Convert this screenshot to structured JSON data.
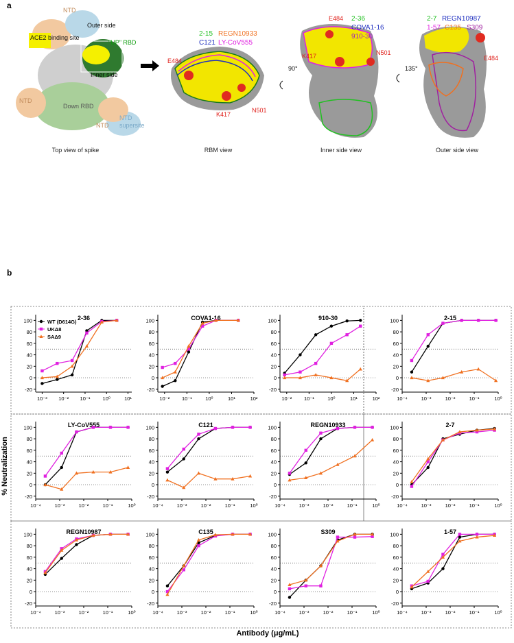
{
  "panel_a": {
    "label": "a",
    "spike_labels": [
      "NTD",
      "Outer side",
      "ACE2 binding site",
      "\"UP\" RBD",
      "Inner side",
      "NTD",
      "Down RBD",
      "NTD",
      "NTD",
      "supersite"
    ],
    "captions": [
      "Top view of spike",
      "RBM view",
      "Inner side view",
      "Outer side view"
    ],
    "rbm_view": {
      "antibodies": [
        "2-15",
        "REGN10933",
        "C121",
        "LY-CoV555"
      ],
      "mutations": [
        "E484",
        "K417",
        "N501"
      ]
    },
    "inner_view": {
      "rotation": "90°",
      "antibodies": [
        "2-36",
        "COVA1-16",
        "910-30"
      ],
      "mutations": [
        "E484",
        "K417",
        "N501"
      ]
    },
    "outer_view": {
      "rotation": "135°",
      "antibodies": [
        "2-7",
        "REGN10987",
        "1-57",
        "C135",
        "S309"
      ],
      "mutations": [
        "E484"
      ]
    }
  },
  "panel_b": {
    "label": "b",
    "y_label": "% Neutralization",
    "x_label": "Antibody (μg/mL)",
    "ref_lines": [
      0,
      50
    ]
  },
  "chart_data": [
    {
      "type": "line",
      "title": "2-36",
      "xscale": "log",
      "xlim": [
        0.0005,
        15
      ],
      "ylim": [
        -25,
        110
      ],
      "xticks": [
        {
          "value": 0.001,
          "label": "10⁻³"
        },
        {
          "value": 0.01,
          "label": "10⁻²"
        },
        {
          "value": 0.1,
          "label": "10⁻¹"
        },
        {
          "value": 1,
          "label": "10⁰"
        },
        {
          "value": 10,
          "label": "10¹"
        }
      ],
      "yticks": [
        -20,
        0,
        20,
        40,
        60,
        80,
        100
      ],
      "legend": "upper left",
      "x": [
        0.001,
        0.005,
        0.025,
        0.12,
        0.6,
        3
      ],
      "series": [
        {
          "name": "WT (D614G)",
          "color": "#000000",
          "marker": "circle",
          "values": [
            -10,
            -3,
            5,
            82,
            100,
            100
          ]
        },
        {
          "name": "UKΔ8",
          "color": "#e020e0",
          "marker": "square",
          "values": [
            12,
            25,
            30,
            78,
            98,
            100
          ]
        },
        {
          "name": "SAΔ9",
          "color": "#f07020",
          "marker": "triangle",
          "values": [
            0,
            2,
            20,
            55,
            97,
            100
          ]
        }
      ]
    },
    {
      "type": "line",
      "title": "COVA1-16",
      "xscale": "log",
      "xlim": [
        0.005,
        100
      ],
      "ylim": [
        -25,
        110
      ],
      "xticks": [
        {
          "value": 0.01,
          "label": "10⁻²"
        },
        {
          "value": 0.1,
          "label": "10⁻¹"
        },
        {
          "value": 1,
          "label": "10⁰"
        },
        {
          "value": 10,
          "label": "10¹"
        },
        {
          "value": 100,
          "label": "10²"
        }
      ],
      "yticks": [
        -20,
        0,
        20,
        40,
        60,
        80,
        100
      ],
      "x": [
        0.008,
        0.03,
        0.12,
        0.5,
        2,
        20
      ],
      "series": [
        {
          "color": "#000000",
          "marker": "circle",
          "values": [
            -15,
            -5,
            45,
            97,
            100,
            100
          ]
        },
        {
          "color": "#e020e0",
          "marker": "square",
          "values": [
            18,
            25,
            50,
            90,
            100,
            100
          ]
        },
        {
          "color": "#f07020",
          "marker": "triangle",
          "values": [
            0,
            10,
            55,
            95,
            100,
            100
          ]
        }
      ]
    },
    {
      "type": "line",
      "title": "910-30",
      "xscale": "log",
      "xlim": [
        0.005,
        100
      ],
      "ylim": [
        -25,
        110
      ],
      "xticks": [
        {
          "value": 0.01,
          "label": "10⁻²"
        },
        {
          "value": 0.1,
          "label": "10⁻¹"
        },
        {
          "value": 1,
          "label": "10⁰"
        },
        {
          "value": 10,
          "label": "10¹"
        },
        {
          "value": 100,
          "label": "10²"
        }
      ],
      "yticks": [
        -20,
        0,
        20,
        40,
        60,
        80,
        100
      ],
      "x": [
        0.008,
        0.04,
        0.2,
        1,
        5,
        20
      ],
      "series": [
        {
          "color": "#000000",
          "marker": "circle",
          "values": [
            8,
            40,
            75,
            90,
            99,
            100
          ]
        },
        {
          "color": "#e020e0",
          "marker": "square",
          "values": [
            5,
            10,
            25,
            60,
            75,
            90
          ]
        },
        {
          "color": "#f07020",
          "marker": "triangle",
          "values": [
            0,
            0,
            5,
            0,
            -5,
            15
          ]
        }
      ]
    },
    {
      "type": "line",
      "title": "2-15",
      "xscale": "log",
      "xlim": [
        0.0001,
        1
      ],
      "ylim": [
        -25,
        110
      ],
      "xticks": [
        {
          "value": 0.0001,
          "label": "10⁻⁴"
        },
        {
          "value": 0.001,
          "label": "10⁻³"
        },
        {
          "value": 0.01,
          "label": "10⁻²"
        },
        {
          "value": 0.1,
          "label": "10⁻¹"
        },
        {
          "value": 1,
          "label": "10⁰"
        }
      ],
      "yticks": [
        -20,
        0,
        20,
        40,
        60,
        80,
        100
      ],
      "x": [
        0.00025,
        0.0012,
        0.005,
        0.03,
        0.15,
        0.8
      ],
      "series": [
        {
          "color": "#000000",
          "marker": "circle",
          "values": [
            10,
            55,
            95,
            100,
            100,
            100
          ]
        },
        {
          "color": "#e020e0",
          "marker": "square",
          "values": [
            30,
            75,
            95,
            100,
            100,
            100
          ]
        },
        {
          "color": "#f07020",
          "marker": "triangle",
          "values": [
            0,
            -5,
            0,
            10,
            15,
            -5
          ]
        }
      ]
    },
    {
      "type": "line",
      "title": "LY-CoV555",
      "xscale": "log",
      "xlim": [
        0.0001,
        1
      ],
      "ylim": [
        -25,
        110
      ],
      "xticks": [
        {
          "value": 0.0001,
          "label": "10⁻⁴"
        },
        {
          "value": 0.001,
          "label": "10⁻³"
        },
        {
          "value": 0.01,
          "label": "10⁻²"
        },
        {
          "value": 0.1,
          "label": "10⁻¹"
        },
        {
          "value": 1,
          "label": "10⁰"
        }
      ],
      "yticks": [
        -20,
        0,
        20,
        40,
        60,
        80,
        100
      ],
      "x": [
        0.00025,
        0.0012,
        0.005,
        0.025,
        0.13,
        0.7
      ],
      "series": [
        {
          "color": "#000000",
          "marker": "circle",
          "values": [
            0,
            30,
            92,
            100,
            100,
            100
          ]
        },
        {
          "color": "#e020e0",
          "marker": "square",
          "values": [
            15,
            55,
            92,
            100,
            100,
            100
          ]
        },
        {
          "color": "#f07020",
          "marker": "triangle",
          "values": [
            0,
            -8,
            20,
            22,
            22,
            30
          ]
        }
      ]
    },
    {
      "type": "line",
      "title": "C121",
      "xscale": "log",
      "xlim": [
        0.0001,
        1
      ],
      "ylim": [
        -25,
        110
      ],
      "xticks": [
        {
          "value": 0.0001,
          "label": "10⁻⁴"
        },
        {
          "value": 0.001,
          "label": "10⁻³"
        },
        {
          "value": 0.01,
          "label": "10⁻²"
        },
        {
          "value": 0.1,
          "label": "10⁻¹"
        },
        {
          "value": 1,
          "label": "10⁰"
        }
      ],
      "yticks": [
        -20,
        0,
        20,
        40,
        60,
        80,
        100
      ],
      "x": [
        0.00025,
        0.0012,
        0.005,
        0.025,
        0.13,
        0.7
      ],
      "series": [
        {
          "color": "#000000",
          "marker": "circle",
          "values": [
            22,
            45,
            80,
            98,
            100,
            100
          ]
        },
        {
          "color": "#e020e0",
          "marker": "square",
          "values": [
            28,
            62,
            88,
            98,
            100,
            100
          ]
        },
        {
          "color": "#f07020",
          "marker": "triangle",
          "values": [
            8,
            -5,
            20,
            10,
            10,
            15
          ]
        }
      ]
    },
    {
      "type": "line",
      "title": "REGN10933",
      "xscale": "log",
      "xlim": [
        0.0001,
        1
      ],
      "ylim": [
        -25,
        110
      ],
      "xticks": [
        {
          "value": 0.0001,
          "label": "10⁻⁴"
        },
        {
          "value": 0.001,
          "label": "10⁻³"
        },
        {
          "value": 0.01,
          "label": "10⁻²"
        },
        {
          "value": 0.1,
          "label": "10⁻¹"
        },
        {
          "value": 1,
          "label": "10⁰"
        }
      ],
      "yticks": [
        -20,
        0,
        20,
        40,
        60,
        80,
        100
      ],
      "x": [
        0.00025,
        0.0012,
        0.005,
        0.025,
        0.13,
        0.7
      ],
      "series": [
        {
          "color": "#000000",
          "marker": "circle",
          "values": [
            18,
            38,
            80,
            98,
            100,
            100
          ]
        },
        {
          "color": "#e020e0",
          "marker": "square",
          "values": [
            20,
            60,
            90,
            98,
            100,
            100
          ]
        },
        {
          "color": "#f07020",
          "marker": "triangle",
          "values": [
            8,
            12,
            20,
            35,
            50,
            78
          ]
        }
      ]
    },
    {
      "type": "line",
      "title": "2-7",
      "xscale": "log",
      "xlim": [
        0.0001,
        1
      ],
      "ylim": [
        -25,
        110
      ],
      "xticks": [
        {
          "value": 0.0001,
          "label": "10⁻⁴"
        },
        {
          "value": 0.001,
          "label": "10⁻³"
        },
        {
          "value": 0.01,
          "label": "10⁻²"
        },
        {
          "value": 0.1,
          "label": "10⁻¹"
        },
        {
          "value": 1,
          "label": "10⁰"
        }
      ],
      "yticks": [
        -20,
        0,
        20,
        40,
        60,
        80,
        100
      ],
      "x": [
        0.00025,
        0.0012,
        0.005,
        0.025,
        0.13,
        0.7
      ],
      "series": [
        {
          "color": "#000000",
          "marker": "circle",
          "values": [
            0,
            30,
            80,
            88,
            95,
            98
          ]
        },
        {
          "color": "#e020e0",
          "marker": "square",
          "values": [
            -3,
            40,
            78,
            90,
            92,
            95
          ]
        },
        {
          "color": "#f07020",
          "marker": "triangle",
          "values": [
            5,
            45,
            78,
            92,
            95,
            97
          ]
        }
      ]
    },
    {
      "type": "line",
      "title": "REGN10987",
      "xscale": "log",
      "xlim": [
        0.0001,
        1
      ],
      "ylim": [
        -25,
        110
      ],
      "xticks": [
        {
          "value": 0.0001,
          "label": "10⁻⁴"
        },
        {
          "value": 0.001,
          "label": "10⁻³"
        },
        {
          "value": 0.01,
          "label": "10⁻²"
        },
        {
          "value": 0.1,
          "label": "10⁻¹"
        },
        {
          "value": 1,
          "label": "10⁰"
        }
      ],
      "yticks": [
        -20,
        0,
        20,
        40,
        60,
        80,
        100
      ],
      "x": [
        0.00025,
        0.0012,
        0.005,
        0.025,
        0.13,
        0.7
      ],
      "series": [
        {
          "color": "#000000",
          "marker": "circle",
          "values": [
            30,
            58,
            82,
            98,
            100,
            100
          ]
        },
        {
          "color": "#e020e0",
          "marker": "square",
          "values": [
            35,
            75,
            92,
            98,
            100,
            100
          ]
        },
        {
          "color": "#f07020",
          "marker": "triangle",
          "values": [
            33,
            72,
            90,
            98,
            100,
            100
          ]
        }
      ]
    },
    {
      "type": "line",
      "title": "C135",
      "xscale": "log",
      "xlim": [
        0.0001,
        1
      ],
      "ylim": [
        -25,
        110
      ],
      "xticks": [
        {
          "value": 0.0001,
          "label": "10⁻⁴"
        },
        {
          "value": 0.001,
          "label": "10⁻³"
        },
        {
          "value": 0.01,
          "label": "10⁻²"
        },
        {
          "value": 0.1,
          "label": "10⁻¹"
        },
        {
          "value": 1,
          "label": "10⁰"
        }
      ],
      "yticks": [
        -20,
        0,
        20,
        40,
        60,
        80,
        100
      ],
      "x": [
        0.00025,
        0.0012,
        0.005,
        0.025,
        0.13,
        0.7
      ],
      "series": [
        {
          "color": "#000000",
          "marker": "circle",
          "values": [
            10,
            45,
            85,
            98,
            100,
            100
          ]
        },
        {
          "color": "#e020e0",
          "marker": "square",
          "values": [
            0,
            38,
            80,
            97,
            100,
            100
          ]
        },
        {
          "color": "#f07020",
          "marker": "triangle",
          "values": [
            -5,
            45,
            90,
            99,
            100,
            100
          ]
        }
      ]
    },
    {
      "type": "line",
      "title": "S309",
      "xscale": "log",
      "xlim": [
        0.0001,
        1
      ],
      "ylim": [
        -25,
        110
      ],
      "xticks": [
        {
          "value": 0.0001,
          "label": "10⁻⁴"
        },
        {
          "value": 0.001,
          "label": "10⁻³"
        },
        {
          "value": 0.01,
          "label": "10⁻²"
        },
        {
          "value": 0.1,
          "label": "10⁻¹"
        },
        {
          "value": 1,
          "label": "10⁰"
        }
      ],
      "yticks": [
        -20,
        0,
        20,
        40,
        60,
        80,
        100
      ],
      "x": [
        0.00025,
        0.0012,
        0.005,
        0.025,
        0.13,
        0.7
      ],
      "series": [
        {
          "color": "#000000",
          "marker": "circle",
          "values": [
            -10,
            20,
            45,
            90,
            100,
            100
          ]
        },
        {
          "color": "#e020e0",
          "marker": "square",
          "values": [
            5,
            10,
            10,
            95,
            95,
            96
          ]
        },
        {
          "color": "#f07020",
          "marker": "triangle",
          "values": [
            12,
            20,
            45,
            88,
            100,
            100
          ]
        }
      ]
    },
    {
      "type": "line",
      "title": "1-57",
      "xscale": "log",
      "xlim": [
        0.0001,
        1
      ],
      "ylim": [
        -25,
        110
      ],
      "xticks": [
        {
          "value": 0.0001,
          "label": "10⁻⁴"
        },
        {
          "value": 0.001,
          "label": "10⁻³"
        },
        {
          "value": 0.01,
          "label": "10⁻²"
        },
        {
          "value": 0.1,
          "label": "10⁻¹"
        },
        {
          "value": 1,
          "label": "10⁰"
        }
      ],
      "yticks": [
        -20,
        0,
        20,
        40,
        60,
        80,
        100
      ],
      "x": [
        0.00025,
        0.0012,
        0.005,
        0.025,
        0.13,
        0.7
      ],
      "series": [
        {
          "color": "#000000",
          "marker": "circle",
          "values": [
            5,
            15,
            40,
            95,
            100,
            100
          ]
        },
        {
          "color": "#e020e0",
          "marker": "square",
          "values": [
            10,
            18,
            65,
            100,
            100,
            100
          ]
        },
        {
          "color": "#f07020",
          "marker": "triangle",
          "values": [
            8,
            35,
            60,
            88,
            95,
            98
          ]
        }
      ]
    }
  ]
}
